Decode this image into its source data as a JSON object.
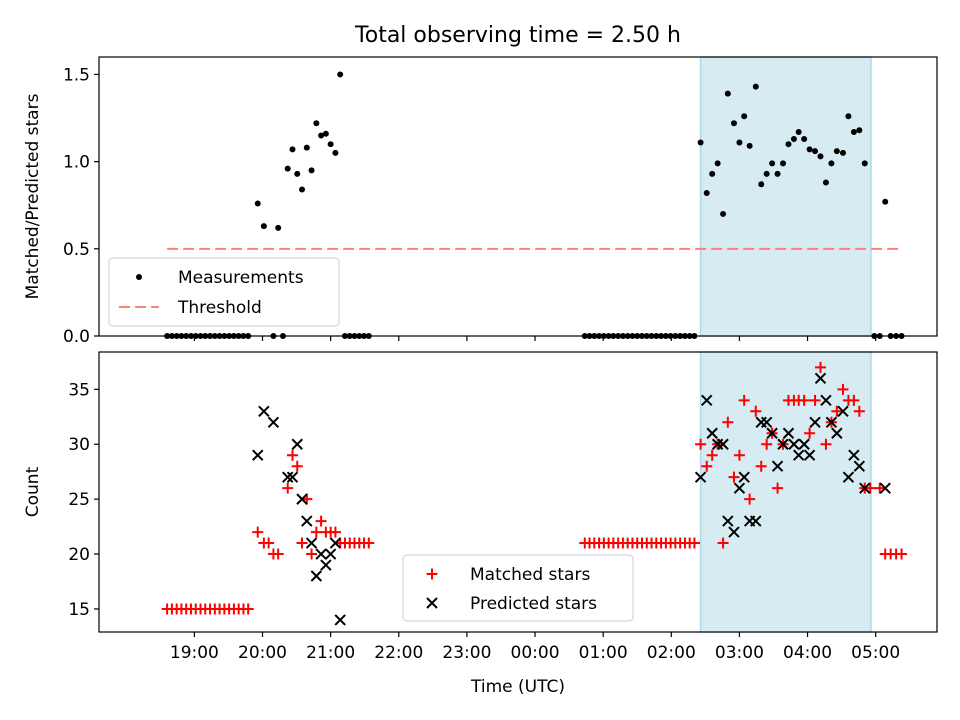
{
  "title": "Total observing time = 2.50 h",
  "colors": {
    "measurement": "#000000",
    "threshold": "#ff7f7f",
    "matched": "#ff0000",
    "predicted": "#000000",
    "shade": "#add8e6"
  },
  "chart_data": [
    {
      "type": "scatter",
      "ylabel": "Matched/Predicted stars",
      "ylim": [
        0,
        1.6
      ],
      "yticks": [
        "0.0",
        "0.5",
        "1.0",
        "1.5"
      ],
      "xlim": [
        -6.4,
        5.9
      ],
      "shaded_interval": [
        2.43,
        4.93
      ],
      "legend": {
        "placement": "lower-left",
        "entries": [
          "Measurements",
          "Threshold"
        ]
      },
      "threshold": {
        "value": 0.5,
        "x": [
          -5.4,
          5.4
        ],
        "style": "dashed"
      },
      "series": [
        {
          "name": "Measurements",
          "marker": "dot",
          "points": [
            [
              -5.4,
              0
            ],
            [
              -5.33,
              0
            ],
            [
              -5.26,
              0
            ],
            [
              -5.19,
              0
            ],
            [
              -5.12,
              0
            ],
            [
              -5.05,
              0
            ],
            [
              -4.98,
              0
            ],
            [
              -4.91,
              0
            ],
            [
              -4.84,
              0
            ],
            [
              -4.77,
              0
            ],
            [
              -4.7,
              0
            ],
            [
              -4.63,
              0
            ],
            [
              -4.56,
              0
            ],
            [
              -4.49,
              0
            ],
            [
              -4.42,
              0
            ],
            [
              -4.35,
              0
            ],
            [
              -4.28,
              0
            ],
            [
              -4.21,
              0
            ],
            [
              -4.07,
              0.76
            ],
            [
              -3.98,
              0.63
            ],
            [
              -3.84,
              0
            ],
            [
              -3.77,
              0.62
            ],
            [
              -3.7,
              0
            ],
            [
              -3.63,
              0.96
            ],
            [
              -3.56,
              1.07
            ],
            [
              -3.49,
              0.93
            ],
            [
              -3.42,
              0.84
            ],
            [
              -3.35,
              1.08
            ],
            [
              -3.28,
              0.95
            ],
            [
              -3.21,
              1.22
            ],
            [
              -3.14,
              1.15
            ],
            [
              -3.07,
              1.16
            ],
            [
              -3.0,
              1.1
            ],
            [
              -2.93,
              1.05
            ],
            [
              -2.86,
              1.5
            ],
            [
              -2.79,
              0
            ],
            [
              -2.72,
              0
            ],
            [
              -2.65,
              0
            ],
            [
              -2.58,
              0
            ],
            [
              -2.51,
              0
            ],
            [
              -2.44,
              0
            ],
            [
              0.73,
              0
            ],
            [
              0.8,
              0
            ],
            [
              0.87,
              0
            ],
            [
              0.94,
              0
            ],
            [
              1.01,
              0
            ],
            [
              1.08,
              0
            ],
            [
              1.15,
              0
            ],
            [
              1.22,
              0
            ],
            [
              1.29,
              0
            ],
            [
              1.36,
              0
            ],
            [
              1.43,
              0
            ],
            [
              1.5,
              0
            ],
            [
              1.57,
              0
            ],
            [
              1.64,
              0
            ],
            [
              1.71,
              0
            ],
            [
              1.78,
              0
            ],
            [
              1.85,
              0
            ],
            [
              1.92,
              0
            ],
            [
              1.99,
              0
            ],
            [
              2.06,
              0
            ],
            [
              2.13,
              0
            ],
            [
              2.2,
              0
            ],
            [
              2.27,
              0
            ],
            [
              2.34,
              0
            ],
            [
              2.43,
              1.11
            ],
            [
              2.52,
              0.82
            ],
            [
              2.6,
              0.93
            ],
            [
              2.68,
              0.99
            ],
            [
              2.76,
              0.7
            ],
            [
              2.83,
              1.39
            ],
            [
              2.92,
              1.22
            ],
            [
              3.0,
              1.11
            ],
            [
              3.07,
              1.26
            ],
            [
              3.15,
              1.09
            ],
            [
              3.24,
              1.43
            ],
            [
              3.32,
              0.87
            ],
            [
              3.4,
              0.93
            ],
            [
              3.48,
              0.99
            ],
            [
              3.56,
              0.93
            ],
            [
              3.64,
              0.99
            ],
            [
              3.72,
              1.1
            ],
            [
              3.8,
              1.13
            ],
            [
              3.87,
              1.17
            ],
            [
              3.95,
              1.13
            ],
            [
              4.03,
              1.07
            ],
            [
              4.11,
              1.06
            ],
            [
              4.19,
              1.03
            ],
            [
              4.27,
              0.88
            ],
            [
              4.35,
              0.99
            ],
            [
              4.43,
              1.06
            ],
            [
              4.52,
              1.05
            ],
            [
              4.6,
              1.26
            ],
            [
              4.68,
              1.17
            ],
            [
              4.76,
              1.18
            ],
            [
              4.84,
              0.99
            ],
            [
              4.98,
              0
            ],
            [
              5.06,
              0
            ],
            [
              5.14,
              0.77
            ],
            [
              5.22,
              0
            ],
            [
              5.3,
              0
            ],
            [
              5.38,
              0
            ]
          ]
        }
      ]
    },
    {
      "type": "scatter",
      "ylabel": "Count",
      "xlabel": "Time (UTC)",
      "ylim": [
        12.9,
        38.4
      ],
      "yticks": [
        "15",
        "20",
        "25",
        "30",
        "35"
      ],
      "xlim": [
        -6.4,
        5.9
      ],
      "xticks": [
        "19:00",
        "20:00",
        "21:00",
        "22:00",
        "23:00",
        "00:00",
        "01:00",
        "02:00",
        "03:00",
        "04:00",
        "05:00"
      ],
      "shaded_interval": [
        2.43,
        4.93
      ],
      "legend": {
        "placement": "lower-center",
        "entries": [
          "Matched stars",
          "Predicted stars"
        ]
      },
      "series": [
        {
          "name": "Matched stars",
          "marker": "plus",
          "points": [
            [
              -5.4,
              15
            ],
            [
              -5.33,
              15
            ],
            [
              -5.26,
              15
            ],
            [
              -5.19,
              15
            ],
            [
              -5.12,
              15
            ],
            [
              -5.05,
              15
            ],
            [
              -4.98,
              15
            ],
            [
              -4.91,
              15
            ],
            [
              -4.84,
              15
            ],
            [
              -4.77,
              15
            ],
            [
              -4.7,
              15
            ],
            [
              -4.63,
              15
            ],
            [
              -4.56,
              15
            ],
            [
              -4.49,
              15
            ],
            [
              -4.42,
              15
            ],
            [
              -4.35,
              15
            ],
            [
              -4.28,
              15
            ],
            [
              -4.21,
              15
            ],
            [
              -4.07,
              22
            ],
            [
              -3.98,
              21
            ],
            [
              -3.91,
              21
            ],
            [
              -3.84,
              20
            ],
            [
              -3.77,
              20
            ],
            [
              -3.63,
              26
            ],
            [
              -3.56,
              29
            ],
            [
              -3.49,
              28
            ],
            [
              -3.42,
              21
            ],
            [
              -3.35,
              25
            ],
            [
              -3.28,
              20
            ],
            [
              -3.21,
              22
            ],
            [
              -3.14,
              23
            ],
            [
              -3.07,
              22
            ],
            [
              -3.0,
              22
            ],
            [
              -2.93,
              22
            ],
            [
              -2.86,
              21
            ],
            [
              -2.79,
              21
            ],
            [
              -2.72,
              21
            ],
            [
              -2.65,
              21
            ],
            [
              -2.58,
              21
            ],
            [
              -2.51,
              21
            ],
            [
              -2.44,
              21
            ],
            [
              0.73,
              21
            ],
            [
              0.8,
              21
            ],
            [
              0.87,
              21
            ],
            [
              0.94,
              21
            ],
            [
              1.01,
              21
            ],
            [
              1.08,
              21
            ],
            [
              1.15,
              21
            ],
            [
              1.22,
              21
            ],
            [
              1.29,
              21
            ],
            [
              1.36,
              21
            ],
            [
              1.43,
              21
            ],
            [
              1.5,
              21
            ],
            [
              1.57,
              21
            ],
            [
              1.64,
              21
            ],
            [
              1.71,
              21
            ],
            [
              1.78,
              21
            ],
            [
              1.85,
              21
            ],
            [
              1.92,
              21
            ],
            [
              1.99,
              21
            ],
            [
              2.06,
              21
            ],
            [
              2.13,
              21
            ],
            [
              2.2,
              21
            ],
            [
              2.27,
              21
            ],
            [
              2.34,
              21
            ],
            [
              2.43,
              30
            ],
            [
              2.52,
              28
            ],
            [
              2.6,
              29
            ],
            [
              2.68,
              30
            ],
            [
              2.76,
              21
            ],
            [
              2.83,
              32
            ],
            [
              2.92,
              27
            ],
            [
              3.0,
              29
            ],
            [
              3.07,
              34
            ],
            [
              3.15,
              25
            ],
            [
              3.24,
              33
            ],
            [
              3.32,
              28
            ],
            [
              3.4,
              30
            ],
            [
              3.48,
              31
            ],
            [
              3.56,
              26
            ],
            [
              3.64,
              30
            ],
            [
              3.72,
              34
            ],
            [
              3.8,
              34
            ],
            [
              3.87,
              34
            ],
            [
              3.95,
              34
            ],
            [
              4.03,
              31
            ],
            [
              4.11,
              34
            ],
            [
              4.19,
              37
            ],
            [
              4.27,
              30
            ],
            [
              4.35,
              32
            ],
            [
              4.43,
              33
            ],
            [
              4.52,
              35
            ],
            [
              4.6,
              34
            ],
            [
              4.68,
              34
            ],
            [
              4.76,
              33
            ],
            [
              4.84,
              26
            ],
            [
              4.92,
              26
            ],
            [
              5.06,
              26
            ],
            [
              5.14,
              20
            ],
            [
              5.22,
              20
            ],
            [
              5.3,
              20
            ],
            [
              5.38,
              20
            ]
          ]
        },
        {
          "name": "Predicted stars",
          "marker": "x",
          "points": [
            [
              -4.07,
              29
            ],
            [
              -3.98,
              33
            ],
            [
              -3.84,
              32
            ],
            [
              -3.63,
              27
            ],
            [
              -3.56,
              27
            ],
            [
              -3.49,
              30
            ],
            [
              -3.42,
              25
            ],
            [
              -3.35,
              23
            ],
            [
              -3.28,
              21
            ],
            [
              -3.21,
              18
            ],
            [
              -3.14,
              20
            ],
            [
              -3.07,
              19
            ],
            [
              -3.0,
              20
            ],
            [
              -2.93,
              21
            ],
            [
              -2.86,
              14
            ],
            [
              2.43,
              27
            ],
            [
              2.52,
              34
            ],
            [
              2.6,
              31
            ],
            [
              2.68,
              30
            ],
            [
              2.76,
              30
            ],
            [
              2.83,
              23
            ],
            [
              2.92,
              22
            ],
            [
              3.0,
              26
            ],
            [
              3.07,
              27
            ],
            [
              3.15,
              23
            ],
            [
              3.24,
              23
            ],
            [
              3.32,
              32
            ],
            [
              3.4,
              32
            ],
            [
              3.48,
              31
            ],
            [
              3.56,
              28
            ],
            [
              3.64,
              30
            ],
            [
              3.72,
              31
            ],
            [
              3.8,
              30
            ],
            [
              3.87,
              29
            ],
            [
              3.95,
              30
            ],
            [
              4.03,
              29
            ],
            [
              4.11,
              32
            ],
            [
              4.19,
              36
            ],
            [
              4.27,
              34
            ],
            [
              4.35,
              32
            ],
            [
              4.43,
              31
            ],
            [
              4.52,
              33
            ],
            [
              4.6,
              27
            ],
            [
              4.68,
              29
            ],
            [
              4.76,
              28
            ],
            [
              4.84,
              26
            ],
            [
              5.14,
              26
            ]
          ]
        }
      ]
    }
  ]
}
